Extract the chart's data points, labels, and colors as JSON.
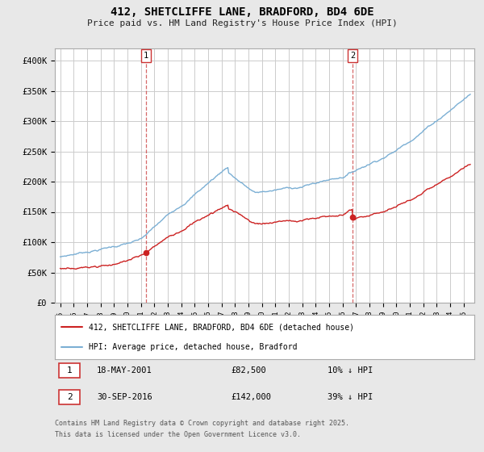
{
  "title": "412, SHETCLIFFE LANE, BRADFORD, BD4 6DE",
  "subtitle": "Price paid vs. HM Land Registry's House Price Index (HPI)",
  "ylim": [
    0,
    420000
  ],
  "yticks": [
    0,
    50000,
    100000,
    150000,
    200000,
    250000,
    300000,
    350000,
    400000
  ],
  "ytick_labels": [
    "£0",
    "£50K",
    "£100K",
    "£150K",
    "£200K",
    "£250K",
    "£300K",
    "£350K",
    "£400K"
  ],
  "xlim_start": 1994.6,
  "xlim_end": 2025.8,
  "bg_color": "#e8e8e8",
  "plot_bg_color": "#ffffff",
  "grid_color": "#cccccc",
  "hpi_color": "#7bafd4",
  "price_color": "#cc2222",
  "marker1_date": 2001.37,
  "marker1_price": 82500,
  "marker1_date_str": "18-MAY-2001",
  "marker1_price_str": "£82,500",
  "marker1_pct_str": "10% ↓ HPI",
  "marker2_date": 2016.75,
  "marker2_price": 142000,
  "marker2_date_str": "30-SEP-2016",
  "marker2_price_str": "£142,000",
  "marker2_pct_str": "39% ↓ HPI",
  "legend_line1": "412, SHETCLIFFE LANE, BRADFORD, BD4 6DE (detached house)",
  "legend_line2": "HPI: Average price, detached house, Bradford",
  "footer_line1": "Contains HM Land Registry data © Crown copyright and database right 2025.",
  "footer_line2": "This data is licensed under the Open Government Licence v3.0."
}
